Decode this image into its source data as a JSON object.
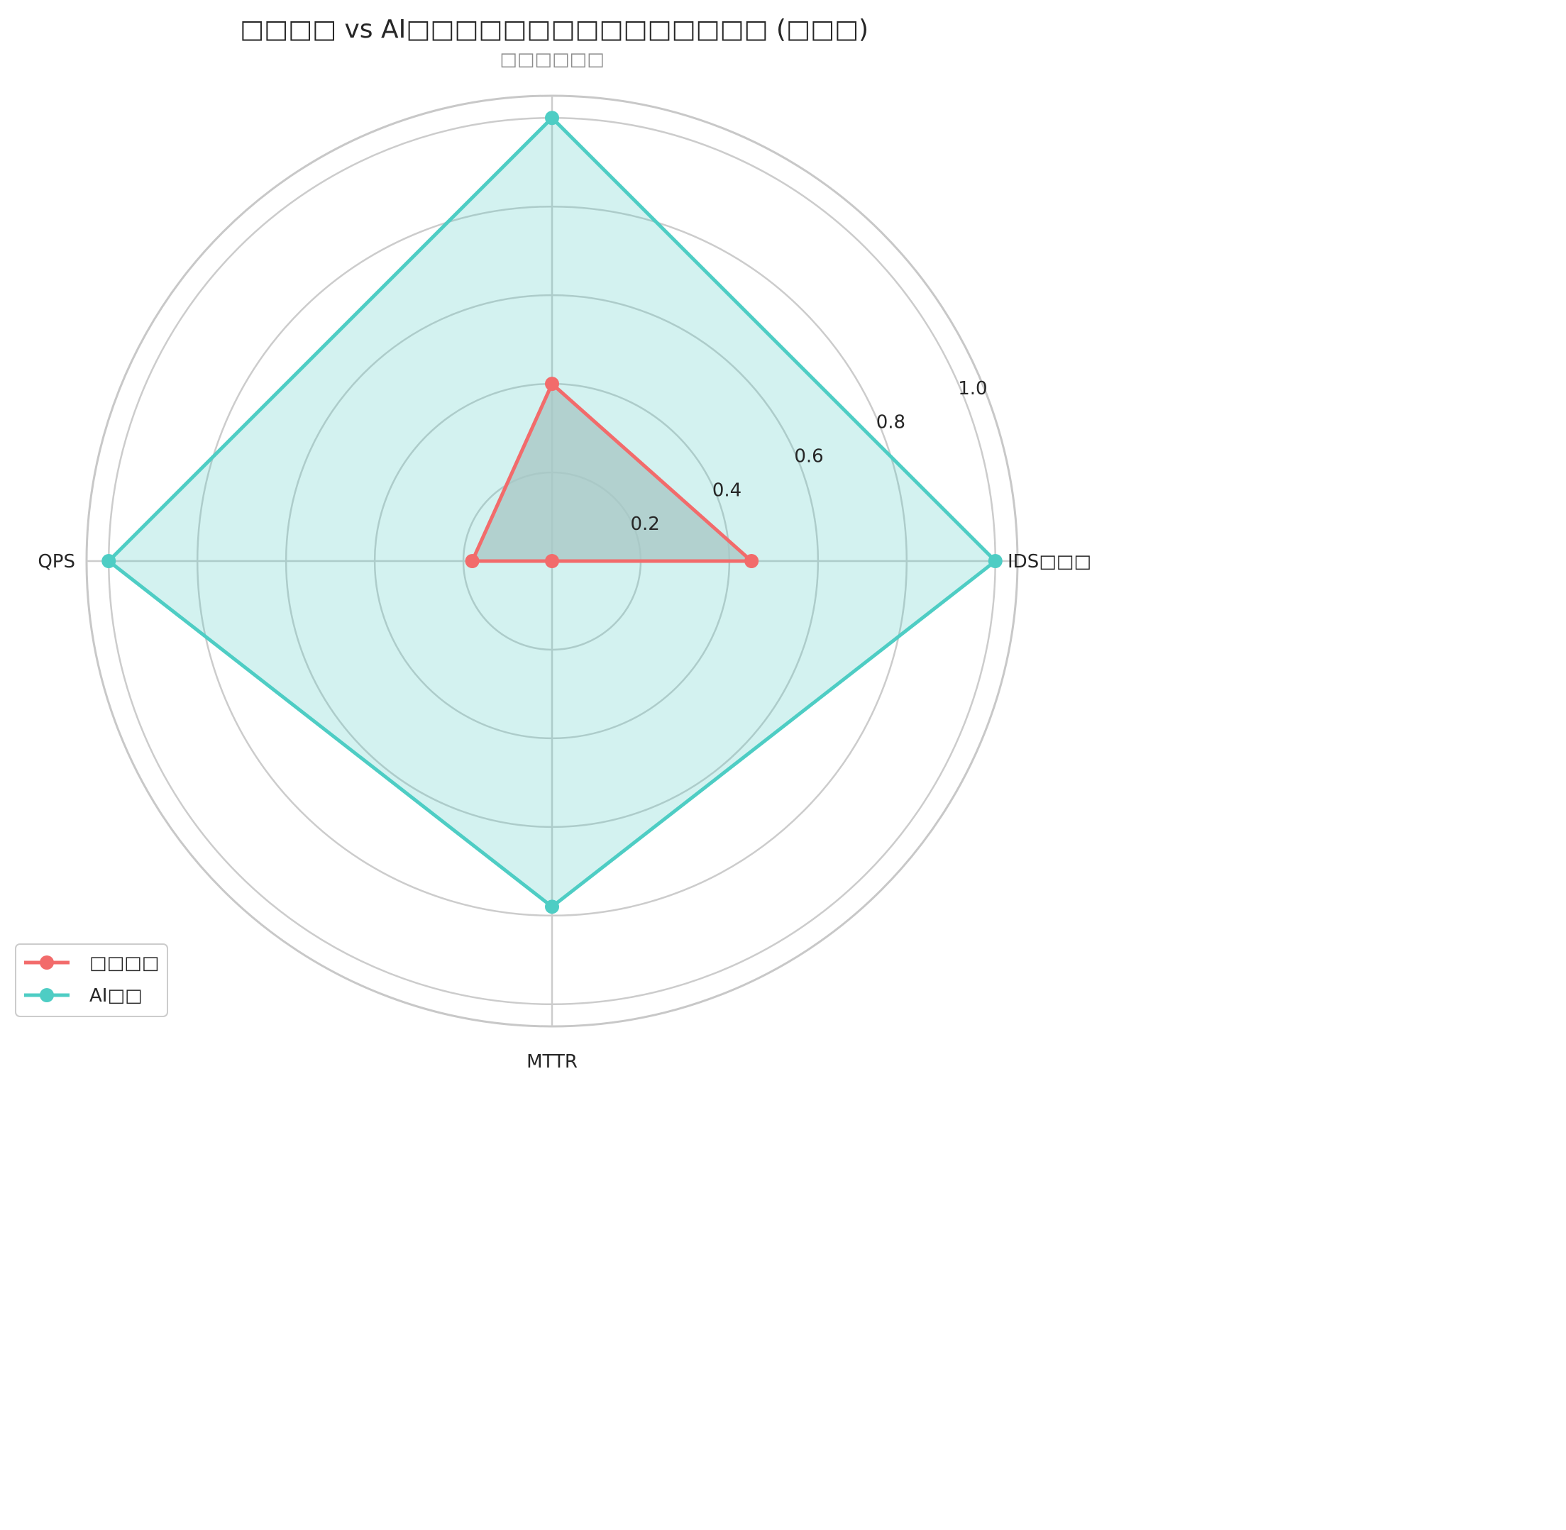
{
  "chart_data": {
    "type": "radar",
    "title": "□□□□ vs AI□□□□□□□□□□□□□□□ (□□□)",
    "subtitle": "□□□□□□",
    "axes": [
      "IDS□□□",
      "□□□□□□",
      "QPS",
      "MTTR"
    ],
    "rlim": [
      0,
      1.05
    ],
    "radial_ticks": [
      0.2,
      0.4,
      0.6,
      0.8,
      1.0
    ],
    "radial_tick_labels": [
      "0.2",
      "0.4",
      "0.6",
      "0.8",
      "1.0"
    ],
    "grid": true,
    "legend_position": "lower-left",
    "series": [
      {
        "name": "□□□□",
        "color": "#f26b6b",
        "fill": "#c8c8c8",
        "values": [
          0.45,
          0.4,
          0.18,
          0.0
        ]
      },
      {
        "name": "AI□□",
        "color": "#4ecdc4",
        "fill": "#4ecdc4",
        "values": [
          1.0,
          1.0,
          1.0,
          0.78
        ]
      }
    ]
  }
}
